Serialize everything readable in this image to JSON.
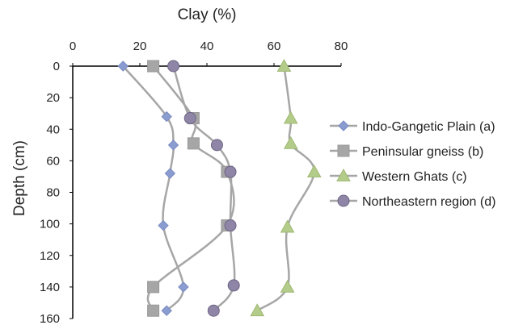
{
  "chart_data": {
    "type": "line",
    "title": "",
    "xlabel": "Clay (%)",
    "ylabel": "Depth (cm)",
    "xlim": [
      0,
      80
    ],
    "ylim": [
      0,
      160
    ],
    "x_axis_position": "top",
    "y_axis_inverted": true,
    "x_ticks": [
      "0",
      "20",
      "40",
      "60",
      "80"
    ],
    "y_ticks": [
      "0",
      "20",
      "40",
      "60",
      "80",
      "100",
      "120",
      "140",
      "160"
    ],
    "grid": false,
    "legend_position": "right",
    "series": [
      {
        "name": "Indo-Gangetic Plain (a)",
        "marker": "diamond",
        "marker_color": "#8A9CD0",
        "line_color": "#A6A6A6",
        "points": [
          [
            15,
            0
          ],
          [
            28,
            32
          ],
          [
            30,
            50
          ],
          [
            29,
            68
          ],
          [
            27,
            101
          ],
          [
            33,
            140
          ],
          [
            28,
            155
          ]
        ]
      },
      {
        "name": "Peninsular gneiss (b)",
        "marker": "square",
        "marker_color": "#A6A6A6",
        "line_color": "#A6A6A6",
        "points": [
          [
            24,
            0
          ],
          [
            36,
            33
          ],
          [
            36,
            49
          ],
          [
            46,
            67
          ],
          [
            46,
            101
          ],
          [
            24,
            140
          ],
          [
            24,
            155
          ]
        ]
      },
      {
        "name": "Western Ghats (c)",
        "marker": "triangle",
        "marker_color": "#B4CC8A",
        "line_color": "#A6A6A6",
        "points": [
          [
            63,
            0
          ],
          [
            65,
            33
          ],
          [
            65,
            49
          ],
          [
            72,
            67
          ],
          [
            64,
            102
          ],
          [
            64,
            140
          ],
          [
            55,
            155
          ]
        ]
      },
      {
        "name": "Northeastern region (d)",
        "marker": "circle",
        "marker_color": "#8F85A6",
        "line_color": "#A6A6A6",
        "points": [
          [
            30,
            0
          ],
          [
            35,
            33
          ],
          [
            43,
            50
          ],
          [
            47,
            67
          ],
          [
            47,
            101
          ],
          [
            48,
            139
          ],
          [
            42,
            155
          ]
        ]
      }
    ]
  }
}
